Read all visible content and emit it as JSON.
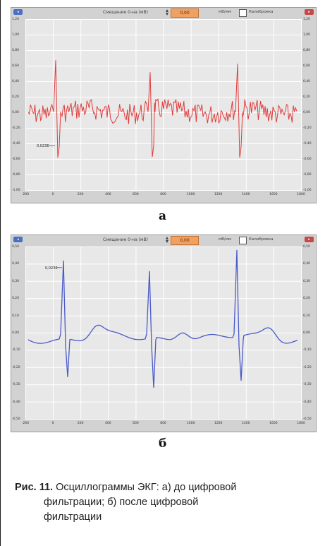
{
  "panel_a": {
    "offset_label": "Смещение 0-на (мВ)",
    "offset_value": "0,00",
    "units_label": "мВ/мм",
    "calibration_label": "Калибровка",
    "y_ticks": [
      "1,20",
      "1,00",
      "0,80",
      "0,60",
      "0,40",
      "0,20",
      "0,00",
      "-0,20",
      "-0,40",
      "-0,60",
      "-0,80",
      "-1,00"
    ],
    "x_ticks": [
      "-200",
      "0",
      "200",
      "400",
      "600",
      "800",
      "1000",
      "1200",
      "1400",
      "1600",
      "1800"
    ],
    "marker_label": "0,0236",
    "trace_color": "#e03c3c",
    "letter": "а"
  },
  "panel_b": {
    "offset_label": "Смещение 0-на (мВ)",
    "offset_value": "0,00",
    "units_label": "мВ/мм",
    "calibration_label": "Калибровка",
    "y_ticks": [
      "0,50",
      "0,40",
      "0,30",
      "0,20",
      "0,10",
      "0,00",
      "-0,10",
      "-0,20",
      "-0,30",
      "-0,40",
      "-0,50"
    ],
    "x_ticks": [
      "-200",
      "0",
      "200",
      "400",
      "600",
      "800",
      "1000",
      "1200",
      "1400",
      "1600",
      "1800"
    ],
    "marker_label": "0,0236",
    "trace_color": "#4a5ac8",
    "letter": "б"
  },
  "caption": {
    "number": "Рис. 11.",
    "line1": " Осциллограммы ЭКГ: а) до цифровой",
    "line2": "фильтрации; б) после цифровой",
    "line3": "фильтрации"
  }
}
